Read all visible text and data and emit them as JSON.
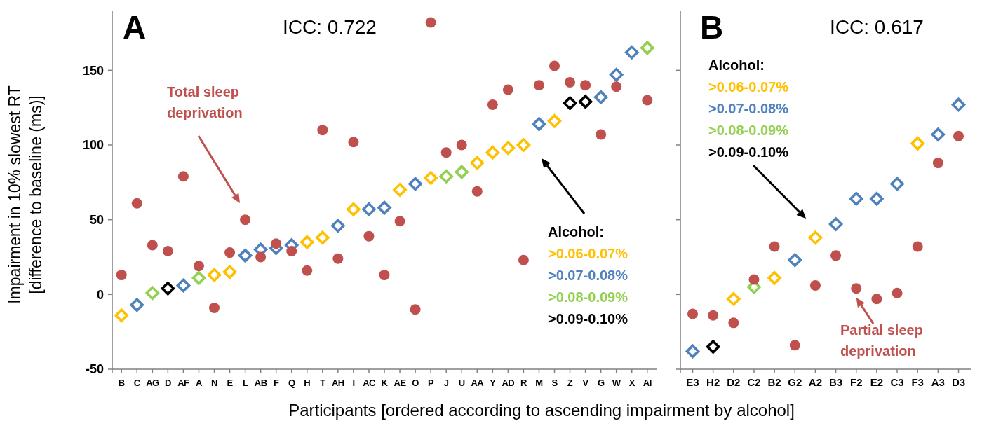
{
  "chart_data": [
    {
      "type": "scatter",
      "title": "A",
      "subtitle": "ICC: 0.722",
      "ylabel": "Impairment in 10% slowest RT\n[difference to baseline (ms)]",
      "xlabel": "Participants [ordered according to ascending impairment by alcohol]",
      "categories": [
        "B",
        "C",
        "AG",
        "D",
        "AF",
        "A",
        "N",
        "E",
        "L",
        "AB",
        "F",
        "Q",
        "H",
        "T",
        "AH",
        "I",
        "AC",
        "K",
        "AE",
        "O",
        "P",
        "J",
        "U",
        "AA",
        "Y",
        "AD",
        "R",
        "M",
        "S",
        "Z",
        "V",
        "G",
        "W",
        "X",
        "AI"
      ],
      "ylim": [
        -50,
        190
      ],
      "yticks": [
        -50,
        0,
        50,
        100,
        150
      ],
      "legend": "bottom right",
      "legend_title": "Alcohol:",
      "annotations": [
        "Total sleep deprivation"
      ],
      "series": [
        {
          "name": ">0.06-0.07%",
          "color": "#ffc000",
          "marker": "diamond",
          "values": [
            -14,
            null,
            null,
            null,
            null,
            null,
            13,
            15,
            null,
            null,
            null,
            null,
            35,
            38,
            null,
            57,
            null,
            null,
            70,
            null,
            78,
            null,
            null,
            88,
            95,
            98,
            100,
            null,
            116,
            null,
            null,
            null,
            null,
            null,
            null
          ]
        },
        {
          "name": ">0.07-0.08%",
          "color": "#4f81bd",
          "marker": "diamond",
          "values": [
            null,
            -7,
            null,
            null,
            6,
            null,
            null,
            null,
            26,
            30,
            31,
            33,
            null,
            null,
            46,
            null,
            57,
            58,
            null,
            74,
            null,
            null,
            null,
            null,
            null,
            null,
            null,
            114,
            null,
            null,
            null,
            132,
            147,
            162,
            null
          ]
        },
        {
          "name": ">0.08-0.09%",
          "color": "#92d050",
          "marker": "diamond",
          "values": [
            null,
            null,
            1,
            null,
            null,
            11,
            null,
            null,
            null,
            null,
            null,
            null,
            null,
            null,
            null,
            null,
            null,
            null,
            null,
            null,
            null,
            79,
            82,
            null,
            null,
            null,
            null,
            null,
            null,
            null,
            null,
            null,
            null,
            null,
            165
          ]
        },
        {
          "name": ">0.09-0.10%",
          "color": "#000000",
          "marker": "diamond",
          "values": [
            null,
            null,
            null,
            4,
            null,
            null,
            null,
            null,
            null,
            null,
            null,
            null,
            null,
            null,
            null,
            null,
            null,
            null,
            null,
            null,
            null,
            null,
            null,
            null,
            null,
            null,
            null,
            null,
            null,
            128,
            129,
            null,
            null,
            null,
            null
          ]
        },
        {
          "color": "#c0504d",
          "marker": "circle",
          "values": [
            13,
            61,
            33,
            29,
            79,
            19,
            -9,
            28,
            50,
            25,
            34,
            29,
            16,
            110,
            24,
            102,
            39,
            13,
            49,
            -10,
            182,
            95,
            100,
            69,
            127,
            137,
            23,
            140,
            153,
            142,
            140,
            107,
            139,
            null,
            130
          ]
        }
      ]
    },
    {
      "type": "scatter",
      "title": "B",
      "subtitle": "ICC: 0.617",
      "categories": [
        "E3",
        "H2",
        "D2",
        "C2",
        "B2",
        "G2",
        "A2",
        "B3",
        "F2",
        "E2",
        "C3",
        "F3",
        "A3",
        "D3"
      ],
      "ylim": [
        -50,
        190
      ],
      "yticks": [
        -50,
        0,
        50,
        100,
        150
      ],
      "tick_labels": "x",
      "legend": "top left",
      "legend_title": "Alcohol:",
      "annotations": [
        {
          "text": "Partial sleep deprivation",
          "x": "F2",
          "y": 4
        }
      ],
      "series": [
        {
          "name": ">0.06-0.07%",
          "color": "#ffc000",
          "marker": "diamond",
          "values": [
            null,
            null,
            -3,
            null,
            11,
            null,
            38,
            null,
            null,
            null,
            null,
            101,
            null,
            null
          ]
        },
        {
          "name": ">0.07-0.08%",
          "color": "#4f81bd",
          "marker": "diamond",
          "values": [
            -38,
            null,
            null,
            null,
            null,
            23,
            null,
            47,
            64,
            64,
            74,
            null,
            107,
            127
          ]
        },
        {
          "name": ">0.08-0.09%",
          "color": "#92d050",
          "marker": "diamond",
          "values": [
            null,
            null,
            null,
            5,
            null,
            null,
            null,
            null,
            null,
            null,
            null,
            null,
            null,
            null
          ]
        },
        {
          "name": ">0.09-0.10%",
          "color": "#000000",
          "marker": "diamond",
          "values": [
            null,
            -35,
            null,
            null,
            null,
            null,
            null,
            null,
            null,
            null,
            null,
            null,
            null,
            null
          ]
        },
        {
          "color": "#c0504d",
          "marker": "circle",
          "values": [
            -13,
            -14,
            -19,
            10,
            32,
            -34,
            6,
            26,
            4,
            -3,
            1,
            32,
            88,
            106
          ]
        }
      ]
    }
  ]
}
